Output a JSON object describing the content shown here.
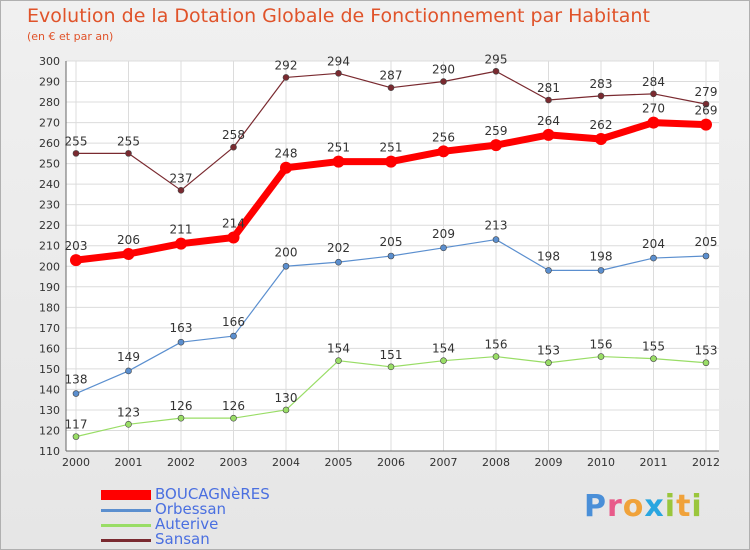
{
  "header": {
    "title": "Evolution de la Dotation Globale de Fonctionnement par Habitant",
    "subtitle": "(en € et par an)"
  },
  "brand": {
    "name": "Proxiti",
    "letter_colors": [
      "#4a8fd8",
      "#e85b8a",
      "#f0a23a",
      "#2aa6e0",
      "#9ac63c",
      "#f0a23a",
      "#9ac63c"
    ]
  },
  "chart_data": {
    "type": "line",
    "title": "Evolution de la Dotation Globale de Fonctionnement par Habitant",
    "subtitle": "(en € et par an)",
    "xlabel": "",
    "ylabel": "",
    "categories": [
      "2000",
      "2001",
      "2002",
      "2003",
      "2004",
      "2005",
      "2006",
      "2007",
      "2008",
      "2009",
      "2010",
      "2011",
      "2012"
    ],
    "ylim": [
      110,
      300
    ],
    "yticks": [
      110,
      120,
      130,
      140,
      150,
      160,
      170,
      180,
      190,
      200,
      210,
      220,
      230,
      240,
      250,
      260,
      270,
      280,
      290,
      300
    ],
    "grid": true,
    "legend_position": "bottom-left",
    "series": [
      {
        "name": "BOUCAGNèRES",
        "color": "#ff0000",
        "values": [
          203,
          206,
          211,
          214,
          248,
          251,
          251,
          256,
          259,
          264,
          262,
          270,
          269
        ]
      },
      {
        "name": "Orbessan",
        "color": "#5b8fcf",
        "values": [
          138,
          149,
          163,
          166,
          200,
          202,
          205,
          209,
          213,
          198,
          198,
          204,
          205
        ]
      },
      {
        "name": "Auterive",
        "color": "#99dd66",
        "values": [
          117,
          123,
          126,
          126,
          130,
          154,
          151,
          154,
          156,
          153,
          156,
          155,
          153
        ]
      },
      {
        "name": "Sansan",
        "color": "#7a2a30",
        "values": [
          255,
          255,
          237,
          258,
          292,
          294,
          287,
          290,
          295,
          281,
          283,
          284,
          279
        ]
      }
    ]
  }
}
